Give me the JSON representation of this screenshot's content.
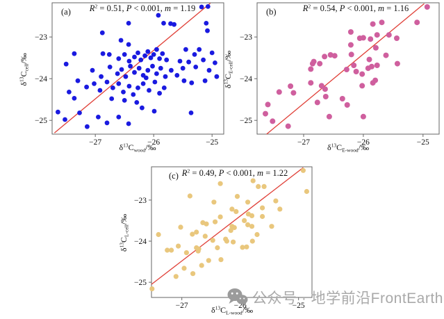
{
  "figure": {
    "background": "#ffffff",
    "watermark": {
      "icon": "wechat-icon",
      "text": "公众号 · 地学前沿FrontEarthSci",
      "color": "#a9a9a9",
      "icon_color": "#9b9b9b"
    }
  },
  "chart_data": [
    {
      "type": "scatter",
      "panel": "a",
      "label": "(a)",
      "stats": {
        "r2": "0.51",
        "p": "0.001",
        "m": "1.19"
      },
      "xlabel": {
        "pre": "δ",
        "sup": "13",
        "base": "C",
        "sub": "wood",
        "post": "/‰"
      },
      "ylabel": {
        "pre": "δ",
        "sup": "13",
        "base": "C",
        "sub": "cell",
        "post": "/‰"
      },
      "xticks": [
        -27,
        -26,
        -25
      ],
      "yticks": [
        -23,
        -24,
        -25
      ],
      "xlim": [
        -27.74,
        -24.8
      ],
      "ylim": [
        -25.33,
        -22.18
      ],
      "grid": false,
      "point_color": "#1a1ae0",
      "point_radius": 3.4,
      "line_color": "#e04038",
      "regression_line": {
        "x1": -27.7,
        "y1": -25.3,
        "x2": -25.03,
        "y2": -22.19
      },
      "points": [
        [
          -26.43,
          -22.67
        ],
        [
          -25.92,
          -22.48
        ],
        [
          -25.83,
          -22.67
        ],
        [
          -25.71,
          -22.68
        ],
        [
          -25.65,
          -22.7
        ],
        [
          -25.18,
          -22.28
        ],
        [
          -25.07,
          -22.27
        ],
        [
          -25.1,
          -22.67
        ],
        [
          -25.08,
          -22.85
        ],
        [
          -26.88,
          -22.9
        ],
        [
          -26.56,
          -23.08
        ],
        [
          -26.43,
          -23.18
        ],
        [
          -26.87,
          -23.4
        ],
        [
          -26.76,
          -23.42
        ],
        [
          -27.36,
          -23.4
        ],
        [
          -27.5,
          -23.65
        ],
        [
          -26.6,
          -23.52
        ],
        [
          -26.5,
          -23.42
        ],
        [
          -26.42,
          -23.58
        ],
        [
          -26.33,
          -23.48
        ],
        [
          -26.27,
          -23.38
        ],
        [
          -26.22,
          -23.55
        ],
        [
          -26.15,
          -23.45
        ],
        [
          -26.1,
          -23.35
        ],
        [
          -26.05,
          -23.5
        ],
        [
          -26.0,
          -23.42
        ],
        [
          -25.95,
          -23.3
        ],
        [
          -25.9,
          -23.52
        ],
        [
          -25.85,
          -23.4
        ],
        [
          -25.78,
          -23.55
        ],
        [
          -25.45,
          -23.3
        ],
        [
          -25.3,
          -23.42
        ],
        [
          -27.05,
          -23.8
        ],
        [
          -26.9,
          -23.95
        ],
        [
          -26.75,
          -23.72
        ],
        [
          -26.62,
          -23.88
        ],
        [
          -26.55,
          -23.78
        ],
        [
          -26.48,
          -23.95
        ],
        [
          -26.4,
          -23.7
        ],
        [
          -26.33,
          -23.85
        ],
        [
          -26.25,
          -23.75
        ],
        [
          -26.18,
          -23.92
        ],
        [
          -26.1,
          -23.8
        ],
        [
          -26.02,
          -23.7
        ],
        [
          -25.95,
          -23.88
        ],
        [
          -25.88,
          -23.75
        ],
        [
          -25.8,
          -23.95
        ],
        [
          -25.7,
          -23.8
        ],
        [
          -25.6,
          -23.92
        ],
        [
          -25.5,
          -23.75
        ],
        [
          -27.3,
          -24.05
        ],
        [
          -27.15,
          -24.2
        ],
        [
          -27.02,
          -24.12
        ],
        [
          -26.92,
          -24.28
        ],
        [
          -26.8,
          -24.08
        ],
        [
          -26.7,
          -24.22
        ],
        [
          -26.6,
          -24.12
        ],
        [
          -26.52,
          -24.32
        ],
        [
          -26.42,
          -24.18
        ],
        [
          -26.35,
          -24.38
        ],
        [
          -26.27,
          -24.22
        ],
        [
          -26.18,
          -24.12
        ],
        [
          -26.08,
          -24.28
        ],
        [
          -25.98,
          -24.08
        ],
        [
          -26.13,
          -23.98
        ],
        [
          -25.9,
          -24.35
        ],
        [
          -25.82,
          -24.22
        ],
        [
          -26.29,
          -24.57
        ],
        [
          -26.5,
          -24.52
        ],
        [
          -26.72,
          -24.48
        ],
        [
          -27.45,
          -24.32
        ],
        [
          -27.36,
          -24.47
        ],
        [
          -27.64,
          -24.8
        ],
        [
          -27.52,
          -24.98
        ],
        [
          -27.27,
          -24.82
        ],
        [
          -27.14,
          -25.15
        ],
        [
          -26.95,
          -24.92
        ],
        [
          -26.8,
          -25.06
        ],
        [
          -26.6,
          -24.92
        ],
        [
          -26.43,
          -25.08
        ],
        [
          -25.99,
          -24.78
        ],
        [
          -25.36,
          -24.82
        ],
        [
          -26.2,
          -24.7
        ],
        [
          -25.4,
          -23.6
        ],
        [
          -25.28,
          -23.72
        ],
        [
          -25.15,
          -23.55
        ],
        [
          -25.05,
          -23.8
        ],
        [
          -25.0,
          -23.38
        ],
        [
          -25.12,
          -24.05
        ],
        [
          -25.35,
          -24.1
        ],
        [
          -24.95,
          -23.62
        ],
        [
          -24.92,
          -23.95
        ],
        [
          -25.22,
          -23.3
        ],
        [
          -25.55,
          -23.58
        ],
        [
          -25.48,
          -24.05
        ]
      ]
    },
    {
      "type": "scatter",
      "panel": "b",
      "label": "(b)",
      "stats": {
        "r2": "0.54",
        "p": "0.001",
        "m": "1.16"
      },
      "xlabel": {
        "pre": "δ",
        "sup": "13",
        "base": "C",
        "sub": "E-wood",
        "post": "/‰"
      },
      "ylabel": {
        "pre": "δ",
        "sup": "13",
        "base": "C",
        "sub": "E-cell",
        "post": "/‰"
      },
      "xticks": [
        -27,
        -26,
        -25
      ],
      "yticks": [
        -23,
        -24,
        -25
      ],
      "xlim": [
        -27.78,
        -24.73
      ],
      "ylim": [
        -25.33,
        -22.18
      ],
      "grid": false,
      "point_color": "#cf5f9e",
      "point_radius": 4.0,
      "line_color": "#e04038",
      "regression_line": {
        "x1": -27.62,
        "y1": -25.33,
        "x2": -24.98,
        "y2": -22.2
      },
      "points": [
        [
          -27.6,
          -24.62
        ],
        [
          -27.64,
          -24.84
        ],
        [
          -27.52,
          -25.02
        ],
        [
          -27.41,
          -24.32
        ],
        [
          -27.22,
          -24.18
        ],
        [
          -27.17,
          -24.34
        ],
        [
          -27.26,
          -25.14
        ],
        [
          -26.88,
          -23.77
        ],
        [
          -26.85,
          -23.64
        ],
        [
          -26.83,
          -23.59
        ],
        [
          -26.88,
          -24.1
        ],
        [
          -26.65,
          -23.47
        ],
        [
          -26.55,
          -23.43
        ],
        [
          -26.48,
          -23.45
        ],
        [
          -26.73,
          -23.64
        ],
        [
          -26.7,
          -24.17
        ],
        [
          -26.64,
          -24.25
        ],
        [
          -26.77,
          -24.57
        ],
        [
          -26.63,
          -24.43
        ],
        [
          -26.57,
          -24.91
        ],
        [
          -26.21,
          -22.88
        ],
        [
          -26.06,
          -23.03
        ],
        [
          -26.0,
          -23.02
        ],
        [
          -25.88,
          -23.05
        ],
        [
          -25.84,
          -22.69
        ],
        [
          -25.69,
          -22.65
        ],
        [
          -25.77,
          -22.95
        ],
        [
          -26.21,
          -23.19
        ],
        [
          -25.79,
          -23.26
        ],
        [
          -25.57,
          -22.95
        ],
        [
          -25.1,
          -22.65
        ],
        [
          -25.44,
          -23.03
        ],
        [
          -26.2,
          -23.42
        ],
        [
          -26.16,
          -23.68
        ],
        [
          -26.28,
          -23.78
        ],
        [
          -25.9,
          -23.54
        ],
        [
          -25.77,
          -23.68
        ],
        [
          -25.92,
          -23.75
        ],
        [
          -25.86,
          -23.71
        ],
        [
          -26.12,
          -23.83
        ],
        [
          -26.02,
          -23.89
        ],
        [
          -25.8,
          -24.04
        ],
        [
          -26.02,
          -24.17
        ],
        [
          -25.84,
          -24.1
        ],
        [
          -26.35,
          -24.48
        ],
        [
          -26.27,
          -24.63
        ],
        [
          -26.0,
          -24.91
        ],
        [
          -24.93,
          -22.28
        ],
        [
          -25.43,
          -23.64
        ],
        [
          -25.62,
          -23.44
        ]
      ]
    },
    {
      "type": "scatter",
      "panel": "c",
      "label": "(c)",
      "stats": {
        "r2": "0.49",
        "p": "0.001",
        "m": "1.22"
      },
      "xlabel": {
        "pre": "δ",
        "sup": "13",
        "base": "C",
        "sub": "L-wood",
        "post": "/‰"
      },
      "ylabel": {
        "pre": "δ",
        "sup": "13",
        "base": "C",
        "sub": "L-cell",
        "post": "/‰"
      },
      "xticks": [
        -27,
        -26,
        -25
      ],
      "yticks": [
        -23,
        -24,
        -25
      ],
      "xlim": [
        -27.52,
        -24.77
      ],
      "ylim": [
        -25.37,
        -22.19
      ],
      "grid": false,
      "point_color": "#e9c77d",
      "point_radius": 3.6,
      "line_color": "#e04038",
      "regression_line": {
        "x1": -27.52,
        "y1": -25.05,
        "x2": -24.92,
        "y2": -22.21
      },
      "points": [
        [
          -26.34,
          -22.6
        ],
        [
          -26.86,
          -22.9
        ],
        [
          -26.45,
          -23.05
        ],
        [
          -26.34,
          -23.41
        ],
        [
          -27.4,
          -23.84
        ],
        [
          -27.02,
          -23.66
        ],
        [
          -26.82,
          -23.83
        ],
        [
          -26.75,
          -23.78
        ],
        [
          -26.64,
          -23.55
        ],
        [
          -26.58,
          -23.58
        ],
        [
          -26.43,
          -23.53
        ],
        [
          -27.25,
          -24.22
        ],
        [
          -27.18,
          -24.22
        ],
        [
          -27.06,
          -24.12
        ],
        [
          -26.92,
          -24.28
        ],
        [
          -26.75,
          -24.16
        ],
        [
          -26.71,
          -24.19
        ],
        [
          -26.72,
          -24.24
        ],
        [
          -26.6,
          -23.88
        ],
        [
          -26.47,
          -23.98
        ],
        [
          -26.39,
          -24.16
        ],
        [
          -26.66,
          -24.59
        ],
        [
          -26.54,
          -24.47
        ],
        [
          -26.81,
          -24.79
        ],
        [
          -26.96,
          -24.66
        ],
        [
          -27.1,
          -24.86
        ],
        [
          -27.51,
          -25.16
        ],
        [
          -26.33,
          -24.45
        ],
        [
          -26.25,
          -23.95
        ],
        [
          -24.92,
          -22.28
        ],
        [
          -25.78,
          -22.53
        ],
        [
          -25.69,
          -22.67
        ],
        [
          -25.59,
          -22.67
        ],
        [
          -24.86,
          -22.79
        ],
        [
          -26.05,
          -22.91
        ],
        [
          -26.14,
          -23.22
        ],
        [
          -26.07,
          -23.28
        ],
        [
          -25.87,
          -23.05
        ],
        [
          -25.39,
          -23.02
        ],
        [
          -25.62,
          -23.19
        ],
        [
          -25.32,
          -23.22
        ],
        [
          -25.86,
          -23.34
        ],
        [
          -25.8,
          -23.38
        ],
        [
          -25.93,
          -23.5
        ],
        [
          -25.62,
          -23.4
        ],
        [
          -26.14,
          -23.64
        ],
        [
          -26.1,
          -23.67
        ],
        [
          -26.16,
          -23.74
        ],
        [
          -26.23,
          -24.0
        ],
        [
          -26.12,
          -24.02
        ],
        [
          -25.87,
          -23.6
        ],
        [
          -25.8,
          -23.64
        ],
        [
          -25.71,
          -23.84
        ],
        [
          -25.96,
          -24.15
        ],
        [
          -25.89,
          -24.14
        ],
        [
          -25.79,
          -24.0
        ],
        [
          -25.46,
          -23.64
        ]
      ]
    }
  ]
}
